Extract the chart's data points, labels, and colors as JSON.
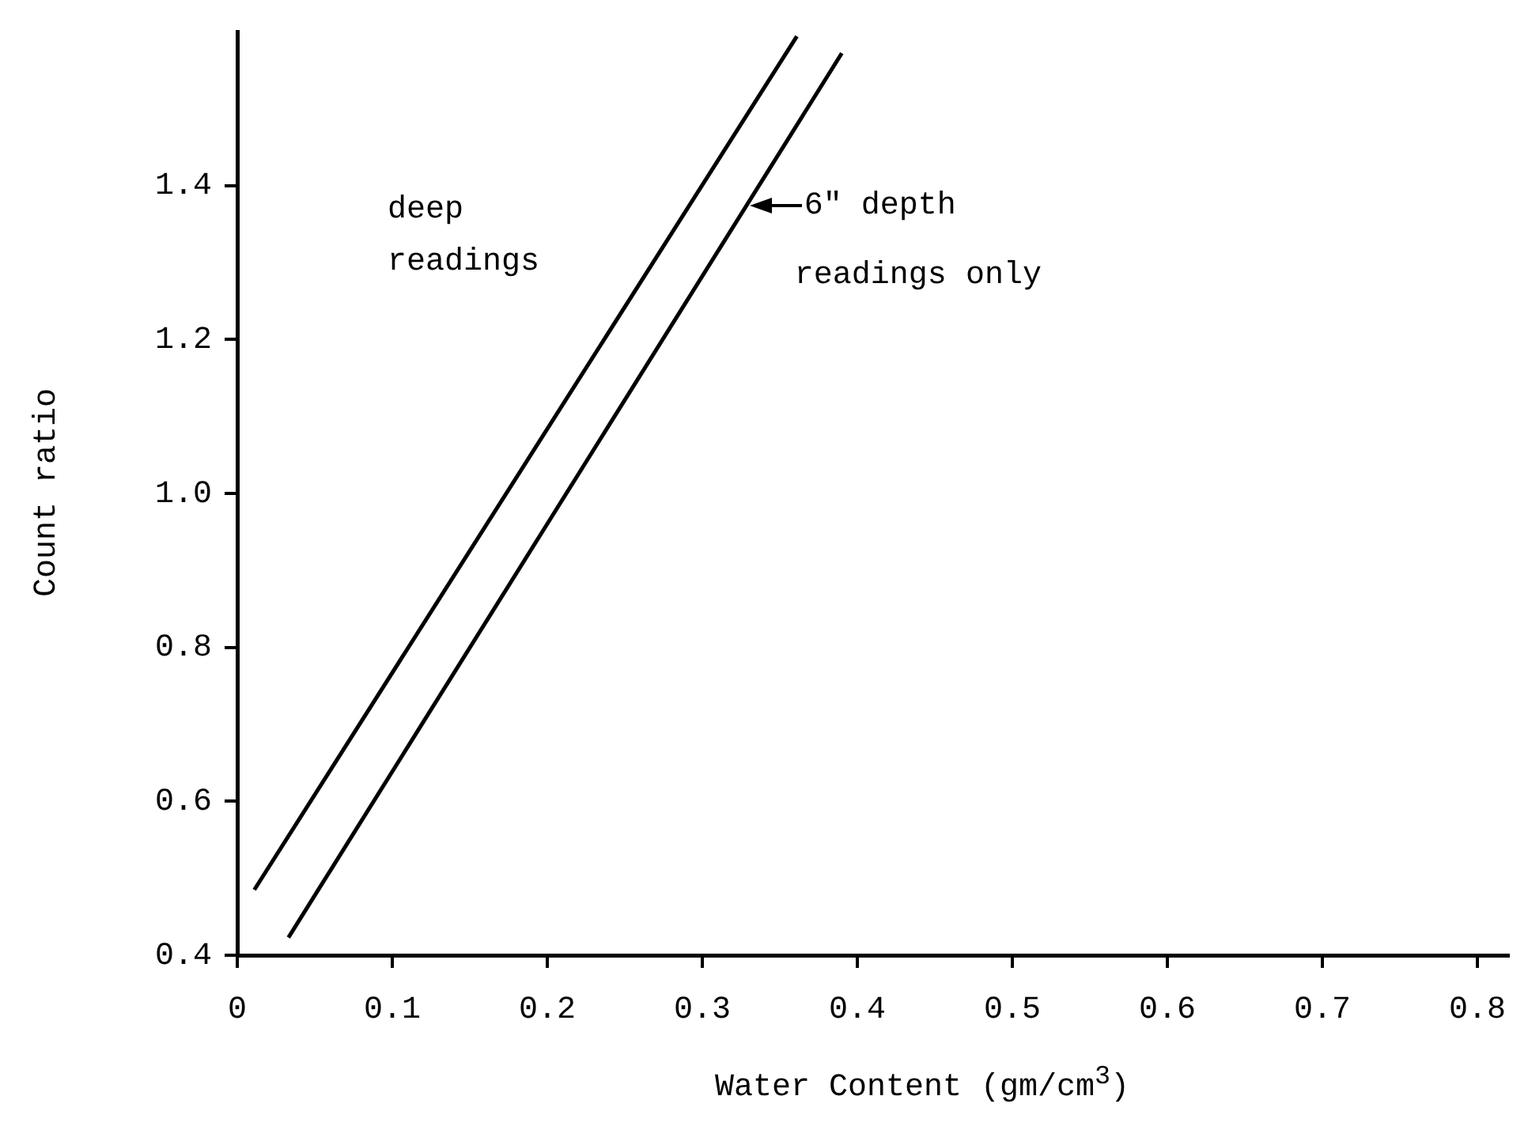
{
  "chart_data": {
    "type": "line",
    "xlabel": "Water Content (gm/cm$^{3}$)",
    "ylabel": "Count ratio",
    "series": [
      {
        "x": [
          0.011,
          0.361
        ],
        "values": [
          0.485,
          1.594
        ],
        "color": "#000000"
      },
      {
        "x": [
          0.033,
          0.39
        ],
        "values": [
          0.423,
          1.572
        ],
        "color": "#000000"
      }
    ],
    "xlim": [
      0,
      0.82
    ],
    "ylim": [
      0.4,
      1.6
    ],
    "xticks": [
      0,
      0.1,
      0.2,
      0.3,
      0.4,
      0.5,
      0.6,
      0.7,
      0.8
    ],
    "yticks": [
      0.4,
      0.6,
      0.8,
      {
        "value": 1,
        "label": "1.0"
      },
      1.2,
      1.4
    ],
    "annotations": [
      "deep\nreadings",
      {
        "text": "6\" depth\nreadings only",
        "x": 0.329,
        "y": 1.375
      }
    ],
    "grid": false,
    "legend": false,
    "marker": "none",
    "line_style": "solid"
  }
}
